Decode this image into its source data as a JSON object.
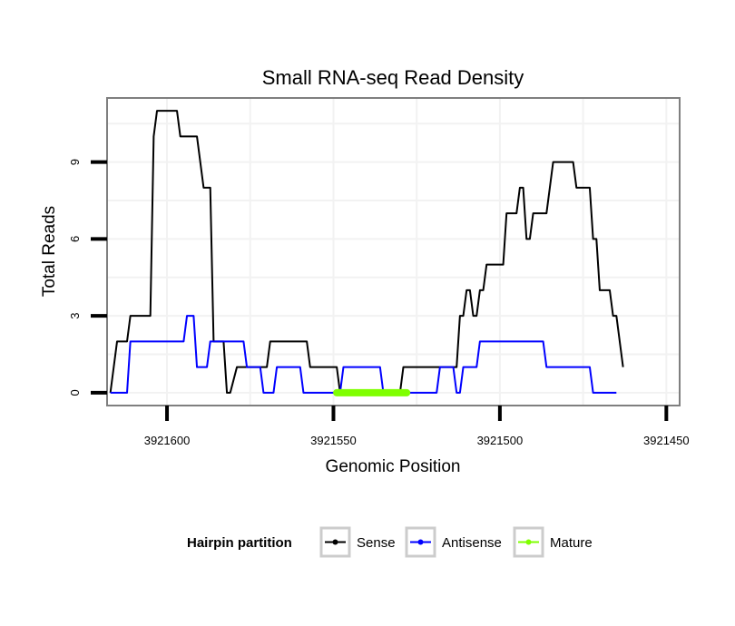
{
  "chart_data": {
    "type": "line",
    "title": "Small RNA-seq Read Density",
    "xlabel": "Genomic Position",
    "ylabel": "Total Reads",
    "xlim": [
      3921618,
      3921446
    ],
    "ylim": [
      -0.5,
      11.5
    ],
    "x_reversed": true,
    "x_ticks": [
      3921600,
      3921550,
      3921500,
      3921450
    ],
    "x_tick_labels": [
      "3921600",
      "3921550",
      "3921500",
      "3921450"
    ],
    "y_ticks": [
      0,
      3,
      6,
      9
    ],
    "y_tick_labels": [
      "0",
      "3",
      "6",
      "9"
    ],
    "grid": true,
    "legend": {
      "title": "Hairpin partition",
      "position": "bottom",
      "entries": [
        "Sense",
        "Antisense",
        "Mature"
      ]
    },
    "series": [
      {
        "name": "Sense",
        "color": "#000000",
        "points": [
          [
            3921617,
            0
          ],
          [
            3921615,
            2
          ],
          [
            3921612,
            2
          ],
          [
            3921611,
            3
          ],
          [
            3921605,
            3
          ],
          [
            3921604,
            10
          ],
          [
            3921603,
            11
          ],
          [
            3921597,
            11
          ],
          [
            3921596,
            10
          ],
          [
            3921591,
            10
          ],
          [
            3921589,
            8
          ],
          [
            3921587,
            8
          ],
          [
            3921586,
            2
          ],
          [
            3921583,
            2
          ],
          [
            3921582,
            0
          ],
          [
            3921581,
            0
          ],
          [
            3921579,
            1
          ],
          [
            3921570,
            1
          ],
          [
            3921569,
            2
          ],
          [
            3921558,
            2
          ],
          [
            3921557,
            1
          ],
          [
            3921549,
            1
          ],
          [
            3921548,
            0
          ],
          [
            3921530,
            0
          ],
          [
            3921529,
            1
          ],
          [
            3921513,
            1
          ],
          [
            3921512,
            3
          ],
          [
            3921511,
            3
          ],
          [
            3921510,
            4
          ],
          [
            3921509,
            4
          ],
          [
            3921508,
            3
          ],
          [
            3921507,
            3
          ],
          [
            3921506,
            4
          ],
          [
            3921505,
            4
          ],
          [
            3921504,
            5
          ],
          [
            3921499,
            5
          ],
          [
            3921498,
            7
          ],
          [
            3921495,
            7
          ],
          [
            3921494,
            8
          ],
          [
            3921493,
            8
          ],
          [
            3921492,
            6
          ],
          [
            3921491,
            6
          ],
          [
            3921490,
            7
          ],
          [
            3921486,
            7
          ],
          [
            3921484,
            9
          ],
          [
            3921478,
            9
          ],
          [
            3921477,
            8
          ],
          [
            3921473,
            8
          ],
          [
            3921472,
            6
          ],
          [
            3921471,
            6
          ],
          [
            3921470,
            4
          ],
          [
            3921467,
            4
          ],
          [
            3921466,
            3
          ],
          [
            3921465,
            3
          ],
          [
            3921463,
            1
          ]
        ]
      },
      {
        "name": "Antisense",
        "color": "#0000ff",
        "points": [
          [
            3921617,
            0
          ],
          [
            3921612,
            0
          ],
          [
            3921611,
            2
          ],
          [
            3921595,
            2
          ],
          [
            3921594,
            3
          ],
          [
            3921592,
            3
          ],
          [
            3921591,
            1
          ],
          [
            3921588,
            1
          ],
          [
            3921587,
            2
          ],
          [
            3921577,
            2
          ],
          [
            3921576,
            1
          ],
          [
            3921572,
            1
          ],
          [
            3921571,
            0
          ],
          [
            3921568,
            0
          ],
          [
            3921567,
            1
          ],
          [
            3921560,
            1
          ],
          [
            3921559,
            0
          ],
          [
            3921548,
            0
          ],
          [
            3921547,
            1
          ],
          [
            3921536,
            1
          ],
          [
            3921535,
            0
          ],
          [
            3921519,
            0
          ],
          [
            3921518,
            1
          ],
          [
            3921514,
            1
          ],
          [
            3921513,
            0
          ],
          [
            3921512,
            0
          ],
          [
            3921511,
            1
          ],
          [
            3921507,
            1
          ],
          [
            3921506,
            2
          ],
          [
            3921487,
            2
          ],
          [
            3921486,
            1
          ],
          [
            3921473,
            1
          ],
          [
            3921472,
            0
          ],
          [
            3921465,
            0
          ]
        ]
      },
      {
        "name": "Mature",
        "color": "#7fff00",
        "points": [
          [
            3921549,
            0
          ],
          [
            3921528,
            0
          ]
        ]
      }
    ]
  }
}
